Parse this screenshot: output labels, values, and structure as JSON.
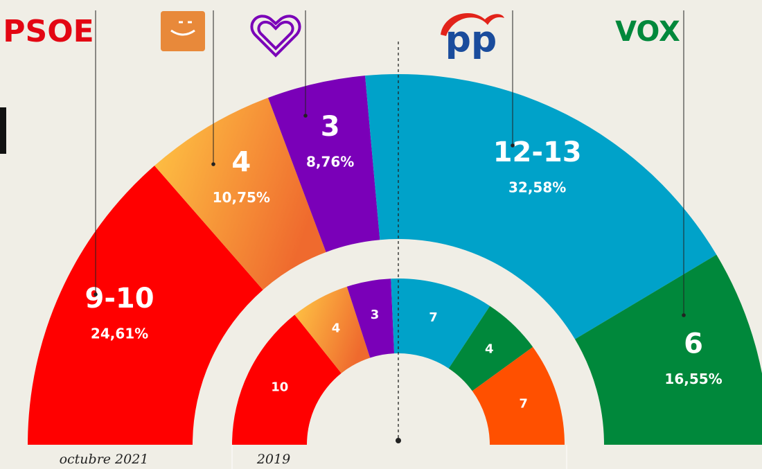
{
  "chart_data": [
    {
      "type": "hemicycle",
      "label": "octubre 2021",
      "categories": [
        "PSOE",
        null,
        null,
        "pp",
        "VOX"
      ],
      "colors": [
        "#ff0000",
        [
          "#ffc845",
          "#ef6a2e"
        ],
        "#7a00b8",
        "#00a2c9",
        "#00883b"
      ],
      "seats_low": [
        9,
        4,
        3,
        12,
        6
      ],
      "seats_high": [
        10,
        4,
        3,
        13,
        6
      ],
      "seat_labels": [
        "9-10",
        "4",
        "3",
        "12-13",
        "6"
      ],
      "values": [
        24.61,
        10.75,
        8.76,
        32.58,
        16.55
      ],
      "value_labels": [
        "24,61%",
        "10,75%",
        "8,76%",
        "32,58%",
        "16,55%"
      ]
    },
    {
      "type": "hemicycle",
      "label": "2019",
      "colors": [
        "#ff0000",
        [
          "#ffc845",
          "#ef6a2e"
        ],
        "#7a00b8",
        "#00a2c9",
        "#00883b",
        "#ff5000"
      ],
      "values": [
        10,
        4,
        3,
        7,
        4,
        7
      ]
    }
  ]
}
